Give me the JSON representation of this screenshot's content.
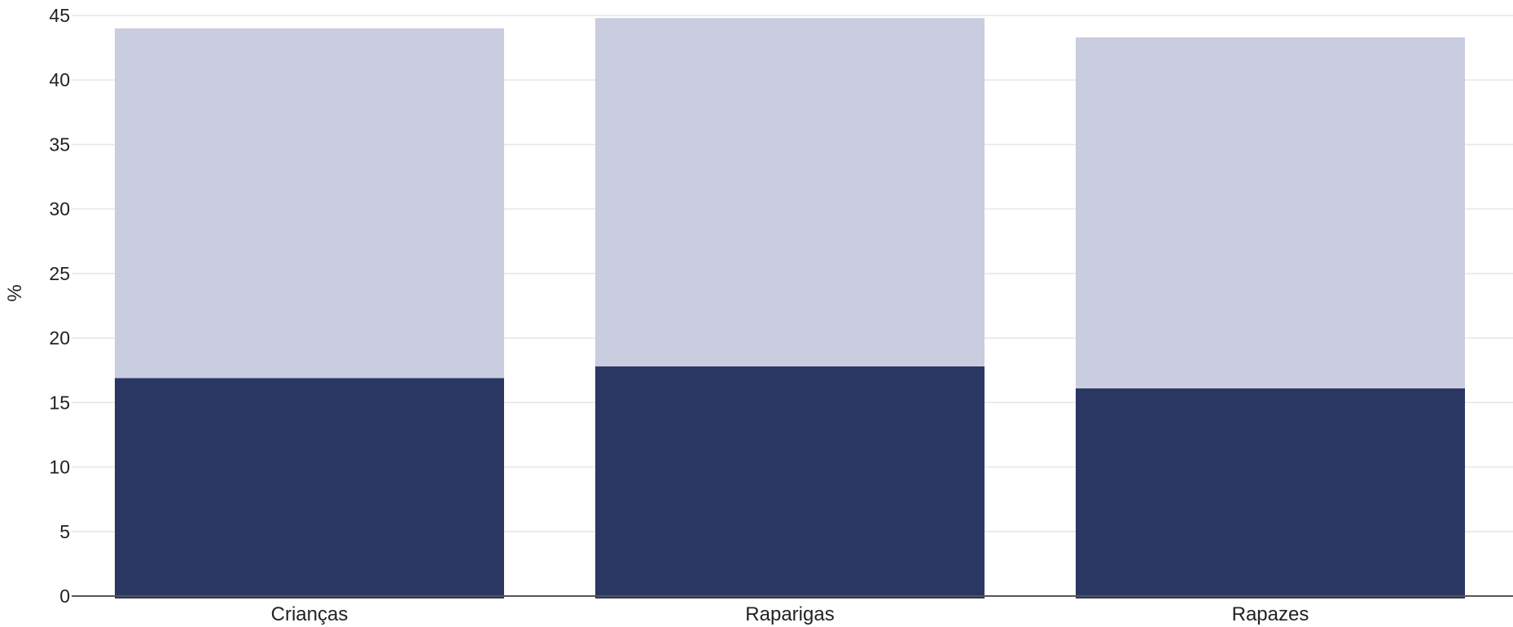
{
  "chart_data": {
    "type": "bar",
    "stacked": true,
    "categories": [
      "Crianças",
      "Raparigas",
      "Rapazes"
    ],
    "series": [
      {
        "values": [
          16.9,
          17.8,
          16.1
        ],
        "color": "#2b3763"
      },
      {
        "values": [
          27.1,
          27.0,
          27.2
        ],
        "color": "#cacce0"
      }
    ],
    "ylabel": "%",
    "xlabel": "",
    "ylim": [
      0,
      45
    ],
    "yticks": [
      0,
      5,
      10,
      15,
      20,
      25,
      30,
      35,
      40,
      45
    ],
    "grid": true,
    "legend": "none"
  }
}
